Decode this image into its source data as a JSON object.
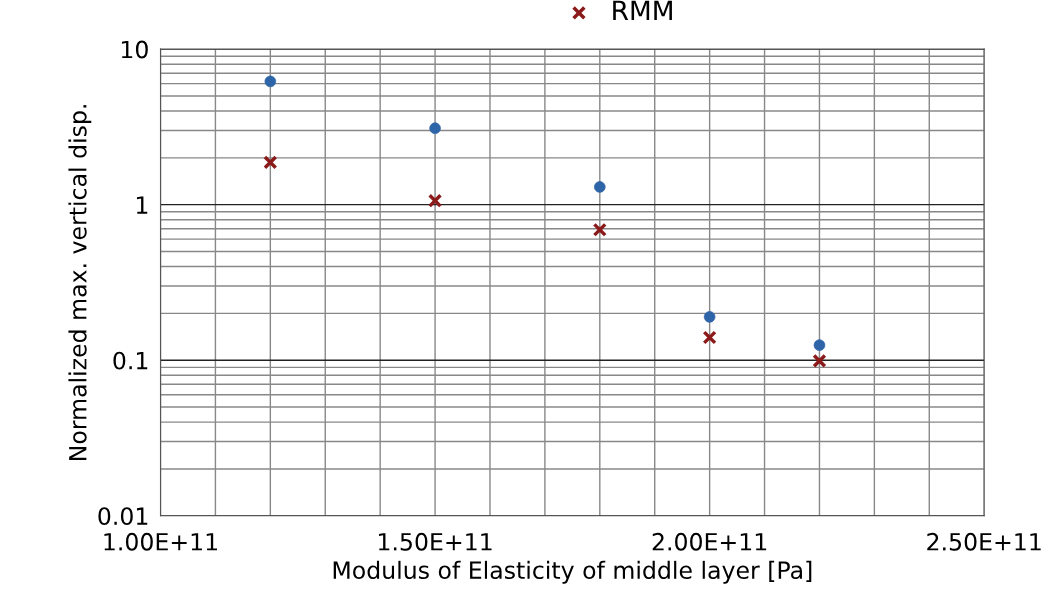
{
  "chart_data": {
    "type": "scatter",
    "xlabel": "Modulus of Elasticity of middle layer [Pa]",
    "ylabel": "Normalized max. vertical disp.",
    "x": [
      120000000000.0,
      150000000000.0,
      180000000000.0,
      200000000000.0,
      220000000000.0
    ],
    "series": [
      {
        "color": "#2e64a8",
        "marker": "circle",
        "values": [
          6.2,
          3.1,
          1.3,
          0.19,
          0.125
        ]
      },
      {
        "name": "RMM",
        "color": "#8b1a1a",
        "marker": "cross",
        "values": [
          1.87,
          1.06,
          0.69,
          0.14,
          0.099
        ]
      }
    ],
    "log": "y",
    "xlim": [
      100000000000.0,
      250000000000.0
    ],
    "ylim": [
      0.01,
      10
    ],
    "xticks": [
      {
        "value": 100000000000.0,
        "label": "1.00E+11"
      },
      {
        "value": 110000000000.0,
        "label": null
      },
      {
        "value": 120000000000.0,
        "label": null
      },
      {
        "value": 130000000000.0,
        "label": null
      },
      {
        "value": 140000000000.0,
        "label": null
      },
      {
        "value": 150000000000.0,
        "label": "1.50E+11"
      },
      {
        "value": 160000000000.0,
        "label": null
      },
      {
        "value": 170000000000.0,
        "label": null
      },
      {
        "value": 180000000000.0,
        "label": null
      },
      {
        "value": 190000000000.0,
        "label": null
      },
      {
        "value": 200000000000.0,
        "label": "2.00E+11"
      },
      {
        "value": 210000000000.0,
        "label": null
      },
      {
        "value": 220000000000.0,
        "label": null
      },
      {
        "value": 230000000000.0,
        "label": null
      },
      {
        "value": 240000000000.0,
        "label": null
      },
      {
        "value": 250000000000.0,
        "label": "2.50E+11"
      }
    ],
    "yticks": [
      0.01,
      0.1,
      1,
      10
    ],
    "grid": true,
    "legend": "top"
  }
}
